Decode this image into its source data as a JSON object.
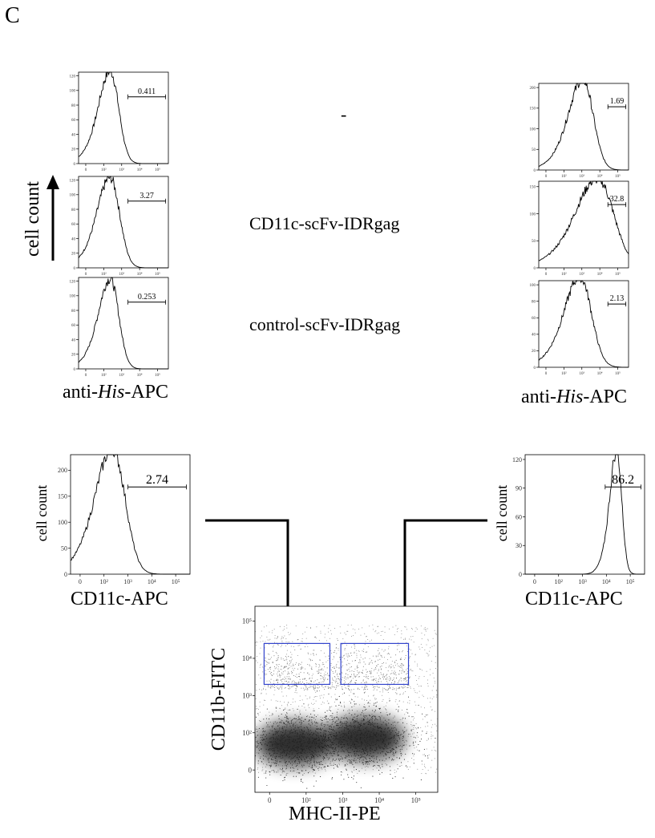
{
  "panel_label": "C",
  "conditions": [
    "-",
    "CD11c-scFv-IDRgag",
    "control-scFv-IDRgag"
  ],
  "top_left": {
    "ylabel": "cell count",
    "xlabel_prefix": "anti-",
    "xlabel_italic": "His",
    "xlabel_suffix": "-APC"
  },
  "top_right": {
    "xlabel_prefix": "anti-",
    "xlabel_italic": "His",
    "xlabel_suffix": "-APC"
  },
  "mid_left_xlabel": "CD11c-APC",
  "mid_right_xlabel": "CD11c-APC",
  "scatter_xlabel": "MHC-II-PE",
  "scatter_ylabel": "CD11b-FITC",
  "chart_data": [
    {
      "type": "line",
      "id": "hist-TL1",
      "gate_value": "0.411",
      "x_ticks": [
        "0",
        "10²",
        "10³",
        "10⁴",
        "10⁵"
      ],
      "y_ticks": [
        "0",
        "20",
        "40",
        "60",
        "80",
        "100",
        "120"
      ],
      "ylim": [
        0,
        125
      ],
      "peak_x": 0.36,
      "peak_y": 115,
      "width": 0.09,
      "gate_range": [
        0.55,
        1.0
      ]
    },
    {
      "type": "line",
      "id": "hist-TL2",
      "gate_value": "3.27",
      "x_ticks": [
        "0",
        "10²",
        "10³",
        "10⁴",
        "10⁵"
      ],
      "y_ticks": [
        "0",
        "20",
        "40",
        "60",
        "80",
        "100",
        "120"
      ],
      "ylim": [
        0,
        125
      ],
      "peak_x": 0.36,
      "peak_y": 112,
      "width": 0.1,
      "gate_range": [
        0.55,
        1.0
      ]
    },
    {
      "type": "line",
      "id": "hist-TL3",
      "gate_value": "0.253",
      "x_ticks": [
        "0",
        "10²",
        "10³",
        "10⁴",
        "10⁵"
      ],
      "y_ticks": [
        "0",
        "20",
        "40",
        "60",
        "80",
        "100",
        "120"
      ],
      "ylim": [
        0,
        125
      ],
      "peak_x": 0.36,
      "peak_y": 112,
      "width": 0.09,
      "gate_range": [
        0.55,
        1.0
      ]
    },
    {
      "type": "line",
      "id": "hist-TR1",
      "gate_value": "1.69",
      "x_ticks": [
        "0",
        "10²",
        "10³",
        "10⁴",
        "10⁵"
      ],
      "y_ticks": [
        "0",
        "50",
        "100",
        "150",
        "200"
      ],
      "ylim": [
        0,
        210
      ],
      "peak_x": 0.5,
      "peak_y": 200,
      "width": 0.11,
      "gate_range": [
        0.77,
        1.0
      ]
    },
    {
      "type": "line",
      "id": "hist-TR2",
      "gate_value": "32.8",
      "x_ticks": [
        "0",
        "10²",
        "10³",
        "10⁴",
        "10⁵"
      ],
      "y_ticks": [
        "0",
        "50",
        "100",
        "150"
      ],
      "ylim": [
        0,
        160
      ],
      "peak_x": 0.67,
      "peak_y": 150,
      "width": 0.17,
      "gate_range": [
        0.77,
        1.0
      ]
    },
    {
      "type": "line",
      "id": "hist-TR3",
      "gate_value": "2.13",
      "x_ticks": [
        "0",
        "10²",
        "10³",
        "10⁴",
        "10⁵"
      ],
      "y_ticks": [
        "0",
        "20",
        "40",
        "60",
        "80",
        "100"
      ],
      "ylim": [
        0,
        105
      ],
      "peak_x": 0.47,
      "peak_y": 100,
      "width": 0.12,
      "gate_range": [
        0.77,
        1.0
      ]
    },
    {
      "type": "line",
      "id": "hist-ML",
      "gate_value": "2.74",
      "x_ticks": [
        "0",
        "10²",
        "10³",
        "10⁴",
        "10⁵"
      ],
      "y_ticks": [
        "0",
        "50",
        "100",
        "150",
        "200"
      ],
      "ylim": [
        0,
        230
      ],
      "peak_x": 0.36,
      "peak_y": 220,
      "width": 0.1,
      "gate_range": [
        0.48,
        1.0
      ]
    },
    {
      "type": "line",
      "id": "hist-MR",
      "gate_value": "86.2",
      "x_ticks": [
        "0",
        "10²",
        "10³",
        "10⁴",
        "10⁵"
      ],
      "y_ticks": [
        "0",
        "30",
        "60",
        "90",
        "120"
      ],
      "ylim": [
        0,
        125
      ],
      "peak_x": 0.77,
      "peak_y": 118,
      "width": 0.04,
      "gate_range": [
        0.67,
        1.0
      ]
    },
    {
      "type": "scatter",
      "id": "scatter-main",
      "x_ticks": [
        "0",
        "10²",
        "10³",
        "10⁴",
        "10⁵"
      ],
      "y_ticks": [
        "0",
        "10²",
        "10³",
        "10⁴",
        "10⁵"
      ],
      "clusters": [
        {
          "cx": 0.22,
          "cy": 0.26,
          "rx": 0.22,
          "ry": 0.12
        },
        {
          "cx": 0.6,
          "cy": 0.29,
          "rx": 0.22,
          "ry": 0.12
        }
      ],
      "gates": [
        {
          "x0": 0.05,
          "x1": 0.41,
          "y0": 0.58,
          "y1": 0.8
        },
        {
          "x0": 0.47,
          "x1": 0.84,
          "y0": 0.58,
          "y1": 0.8
        }
      ],
      "gate_color": "#3344cc"
    }
  ]
}
